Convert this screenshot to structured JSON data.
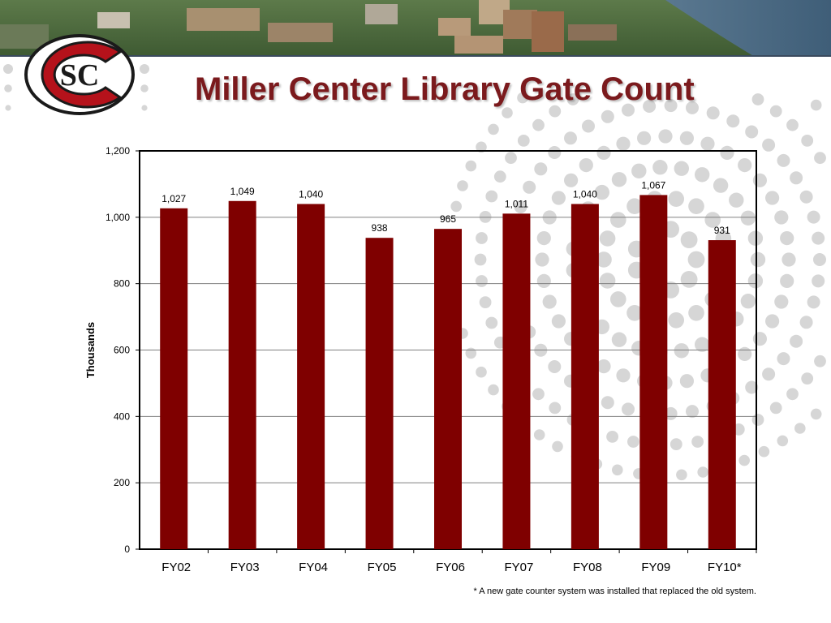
{
  "slide": {
    "title": "Miller Center Library Gate Count",
    "logo_letters": "SC",
    "footnote": "* A new gate counter system was installed that replaced the old system."
  },
  "colors": {
    "bar": "#7f0000",
    "title": "#7b1a1d",
    "gridline": "#808080",
    "decor_dots": "#d6d6d6",
    "logo_red": "#b5121b"
  },
  "chart_data": {
    "type": "bar",
    "categories": [
      "FY02",
      "FY03",
      "FY04",
      "FY05",
      "FY06",
      "FY07",
      "FY08",
      "FY09",
      "FY10*"
    ],
    "values": [
      1027,
      1049,
      1040,
      938,
      965,
      1011,
      1040,
      1067,
      931
    ],
    "data_labels": [
      "1,027",
      "1,049",
      "1,040",
      "938",
      "965",
      "1,011",
      "1,040",
      "1,067",
      "931"
    ],
    "ylabel": "Thousands",
    "xlabel": "",
    "ylim": [
      0,
      1200
    ],
    "yticks": [
      0,
      200,
      400,
      600,
      800,
      1000,
      1200
    ],
    "ytick_labels": [
      "0",
      "200",
      "400",
      "600",
      "800",
      "1,000",
      "1,200"
    ],
    "grid": true,
    "legend": "none"
  }
}
